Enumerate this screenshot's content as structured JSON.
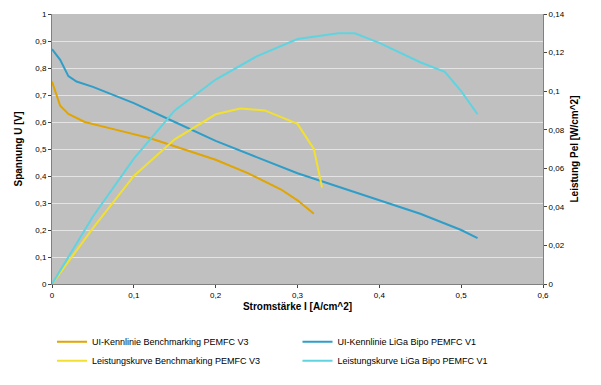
{
  "chart_data": {
    "type": "line",
    "x_label": "Stromstärke I [A/cm^2]",
    "y_label": "Spannung U [V]",
    "y2_label": "Leistung Pel [W/cm^2]",
    "xlim": [
      0,
      0.6
    ],
    "xticks": [
      0,
      {
        "value": 0.1,
        "label": "0,1"
      },
      {
        "value": 0.2,
        "label": "0,2"
      },
      {
        "value": 0.3,
        "label": "0,3"
      },
      {
        "value": 0.4,
        "label": "0,4"
      },
      {
        "value": 0.5,
        "label": "0,5"
      },
      {
        "value": 0.6,
        "label": "0,6"
      }
    ],
    "ylim": [
      0,
      1
    ],
    "yticks": [
      0,
      {
        "value": 0.1,
        "label": "0,1"
      },
      {
        "value": 0.2,
        "label": "0,2"
      },
      {
        "value": 0.3,
        "label": "0,3"
      },
      {
        "value": 0.4,
        "label": "0,4"
      },
      {
        "value": 0.5,
        "label": "0,5"
      },
      {
        "value": 0.6,
        "label": "0,6"
      },
      {
        "value": 0.7,
        "label": "0,7"
      },
      {
        "value": 0.8,
        "label": "0,8"
      },
      {
        "value": 0.9,
        "label": "0,9"
      },
      1
    ],
    "y2lim": [
      0,
      0.14
    ],
    "y2ticks": [
      0,
      {
        "value": 0.02,
        "label": "0,02"
      },
      {
        "value": 0.04,
        "label": "0,04"
      },
      {
        "value": 0.06,
        "label": "0,06"
      },
      {
        "value": 0.08,
        "label": "0,08"
      },
      {
        "value": 0.1,
        "label": "0,1"
      },
      {
        "value": 0.12,
        "label": "0,12"
      },
      {
        "value": 0.14,
        "label": "0,14"
      }
    ],
    "grid": true,
    "legend": "bottom",
    "series": [
      {
        "name": "UI-Kennlinie Benchmarking PEMFC V3",
        "color": "#e0a500",
        "x": [
          0,
          0.01,
          0.02,
          0.04,
          0.08,
          0.12,
          0.16,
          0.2,
          0.24,
          0.28,
          0.3,
          0.32
        ],
        "values": [
          0.75,
          0.66,
          0.63,
          0.6,
          0.57,
          0.54,
          0.5,
          0.46,
          0.41,
          0.35,
          0.31,
          0.26
        ]
      },
      {
        "name": "UI-Kennlinie LiGa Bipo PEMFC V1",
        "color": "#2e9ec8",
        "x": [
          0,
          0.01,
          0.02,
          0.03,
          0.05,
          0.1,
          0.15,
          0.2,
          0.25,
          0.3,
          0.35,
          0.4,
          0.45,
          0.5,
          0.52
        ],
        "values": [
          0.87,
          0.83,
          0.77,
          0.75,
          0.73,
          0.67,
          0.6,
          0.53,
          0.47,
          0.41,
          0.36,
          0.31,
          0.26,
          0.2,
          0.17
        ]
      },
      {
        "name": "Leistungskurve Benchmarking PEMFC V3",
        "color": "#f2e030",
        "axis": "y2",
        "x": [
          0,
          0.05,
          0.1,
          0.15,
          0.2,
          0.23,
          0.26,
          0.29,
          0.3,
          0.32,
          0.33
        ],
        "values": [
          0,
          0.029,
          0.056,
          0.075,
          0.088,
          0.091,
          0.09,
          0.085,
          0.083,
          0.07,
          0.05
        ]
      },
      {
        "name": "Leistungskurve LiGa Bipo PEMFC V1",
        "color": "#5fd4e0",
        "axis": "y2",
        "x": [
          0,
          0.05,
          0.1,
          0.15,
          0.2,
          0.25,
          0.3,
          0.35,
          0.37,
          0.4,
          0.45,
          0.48,
          0.5,
          0.52
        ],
        "values": [
          0,
          0.035,
          0.065,
          0.09,
          0.106,
          0.118,
          0.127,
          0.13,
          0.13,
          0.125,
          0.115,
          0.11,
          0.1,
          0.088
        ]
      }
    ]
  }
}
